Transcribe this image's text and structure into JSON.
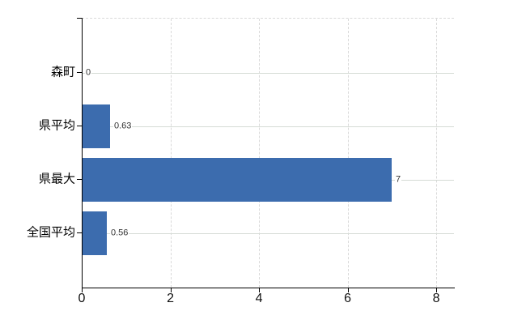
{
  "chart_data": {
    "type": "bar",
    "orientation": "horizontal",
    "title": "",
    "legend": "none",
    "categories": [
      "森町",
      "県平均",
      "県最大",
      "全国平均"
    ],
    "values": [
      0,
      0.63,
      7,
      0.56
    ],
    "value_labels": [
      "0",
      "0.63",
      "7",
      "0.56"
    ],
    "xlim": [
      0,
      8.4
    ],
    "x_ticks": [
      0,
      2,
      4,
      6,
      8
    ],
    "x_tick_labels": [
      "0",
      "2",
      "4",
      "6",
      "8"
    ],
    "grid": {
      "vertical": "dashed light gray at each x tick",
      "horizontal": "solid light gray line at each category row"
    },
    "colors": {
      "bar": "#3C6CAE",
      "axis": "#000000",
      "vertical_gridline": "#d9d9d9",
      "row_gridline": "#d5dbd5",
      "value_label_text": "#333333",
      "category_label_text": "#000000",
      "tick_label_text": "#111111",
      "background": "#ffffff"
    }
  }
}
